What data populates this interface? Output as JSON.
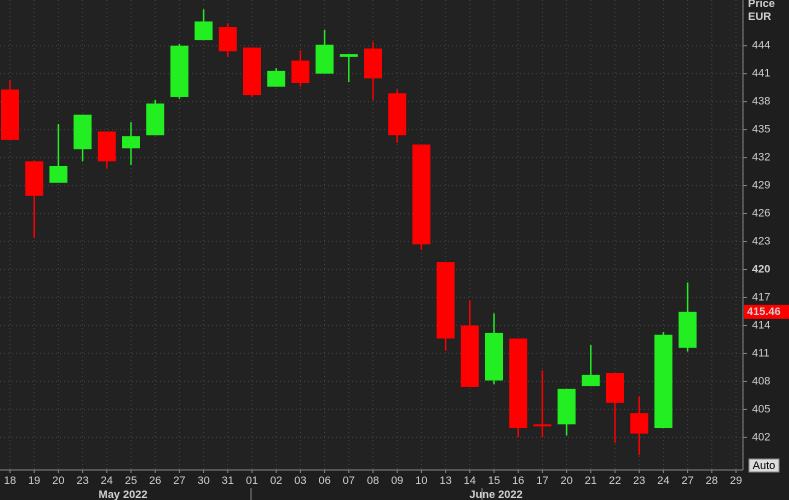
{
  "chart_data": {
    "type": "candlestick",
    "y_axis_label": "Price",
    "y_axis_unit": "EUR",
    "categories": [
      "18",
      "19",
      "20",
      "23",
      "24",
      "25",
      "26",
      "27",
      "30",
      "31",
      "01",
      "02",
      "03",
      "06",
      "07",
      "08",
      "09",
      "10",
      "13",
      "14",
      "15",
      "16",
      "17",
      "20",
      "21",
      "22",
      "23",
      "24",
      "27",
      "28",
      "29"
    ],
    "open": [
      439.3,
      431.6,
      429.3,
      432.9,
      434.8,
      433.0,
      434.4,
      438.5,
      444.6,
      446.0,
      443.8,
      439.6,
      442.4,
      441.0,
      442.8,
      443.7,
      438.9,
      433.4,
      420.8,
      414.0,
      408.1,
      412.6,
      403.4,
      403.4,
      407.5,
      408.9,
      404.6,
      403.0,
      411.6,
      null,
      null
    ],
    "high": [
      440.3,
      431.6,
      435.6,
      436.6,
      434.8,
      435.8,
      438.2,
      444.2,
      447.9,
      446.4,
      443.8,
      441.6,
      443.5,
      445.7,
      443.1,
      444.4,
      439.3,
      433.4,
      420.8,
      416.7,
      415.3,
      412.6,
      409.2,
      407.2,
      411.9,
      408.9,
      406.4,
      413.3,
      418.6,
      null,
      null
    ],
    "low": [
      433.9,
      423.4,
      429.3,
      431.6,
      430.9,
      431.2,
      434.4,
      438.3,
      444.6,
      442.8,
      438.5,
      439.6,
      439.6,
      441.0,
      440.1,
      438.2,
      433.6,
      422.1,
      411.3,
      407.4,
      407.7,
      402.0,
      402.0,
      402.2,
      407.5,
      401.4,
      400.1,
      403.0,
      411.2,
      null,
      null
    ],
    "close": [
      433.9,
      427.9,
      431.1,
      436.6,
      431.6,
      434.3,
      437.8,
      444.0,
      446.6,
      443.4,
      438.7,
      441.3,
      440.0,
      444.1,
      443.1,
      440.5,
      434.4,
      422.7,
      412.6,
      407.4,
      413.2,
      403.0,
      403.2,
      407.2,
      408.7,
      405.7,
      402.4,
      413.0,
      415.46,
      null,
      null
    ],
    "up_color": "#22ee22",
    "down_color": "#ff0000",
    "ylim": [
      398.5,
      448.9
    ],
    "yticks": [
      402,
      405,
      408,
      411,
      414,
      417,
      420,
      423,
      426,
      429,
      432,
      435,
      438,
      441,
      444
    ],
    "bold_yticks": [
      420
    ],
    "grid": true,
    "last_price": 415.46,
    "months": [
      "May 2022",
      "June 2022"
    ],
    "scale_button": "Auto"
  }
}
